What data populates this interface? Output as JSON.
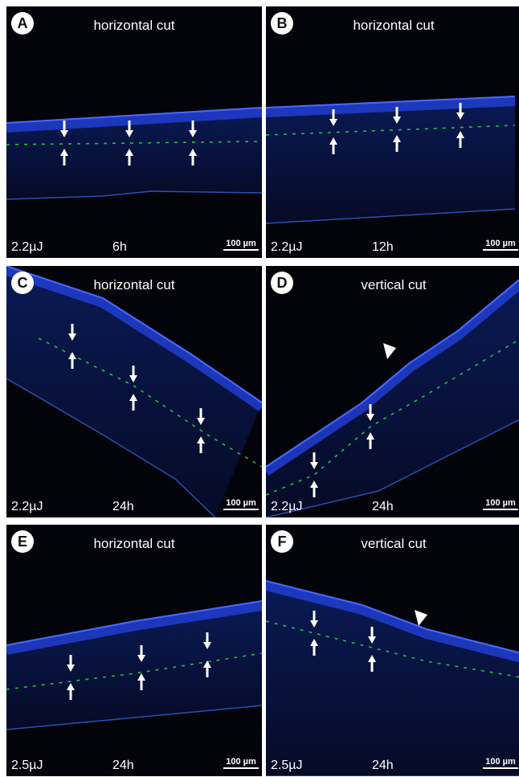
{
  "panels": [
    {
      "letter": "A",
      "title": "horizontal cut",
      "energy": "2.2µJ",
      "time": "6h",
      "scale_bar": "100 µm"
    },
    {
      "letter": "B",
      "title": "horizontal cut",
      "energy": "2.2µJ",
      "time": "12h",
      "scale_bar": "100 µm"
    },
    {
      "letter": "C",
      "title": "horizontal cut",
      "energy": "2.2µJ",
      "time": "24h",
      "scale_bar": "100 µm"
    },
    {
      "letter": "D",
      "title": "vertical cut",
      "energy": "2.2µJ",
      "time": "24h",
      "scale_bar": "100 µm"
    },
    {
      "letter": "E",
      "title": "horizontal cut",
      "energy": "2.5µJ",
      "time": "24h",
      "scale_bar": "100 µm"
    },
    {
      "letter": "F",
      "title": "vertical cut",
      "energy": "2.5µJ",
      "time": "24h",
      "scale_bar": "100 µm"
    }
  ]
}
